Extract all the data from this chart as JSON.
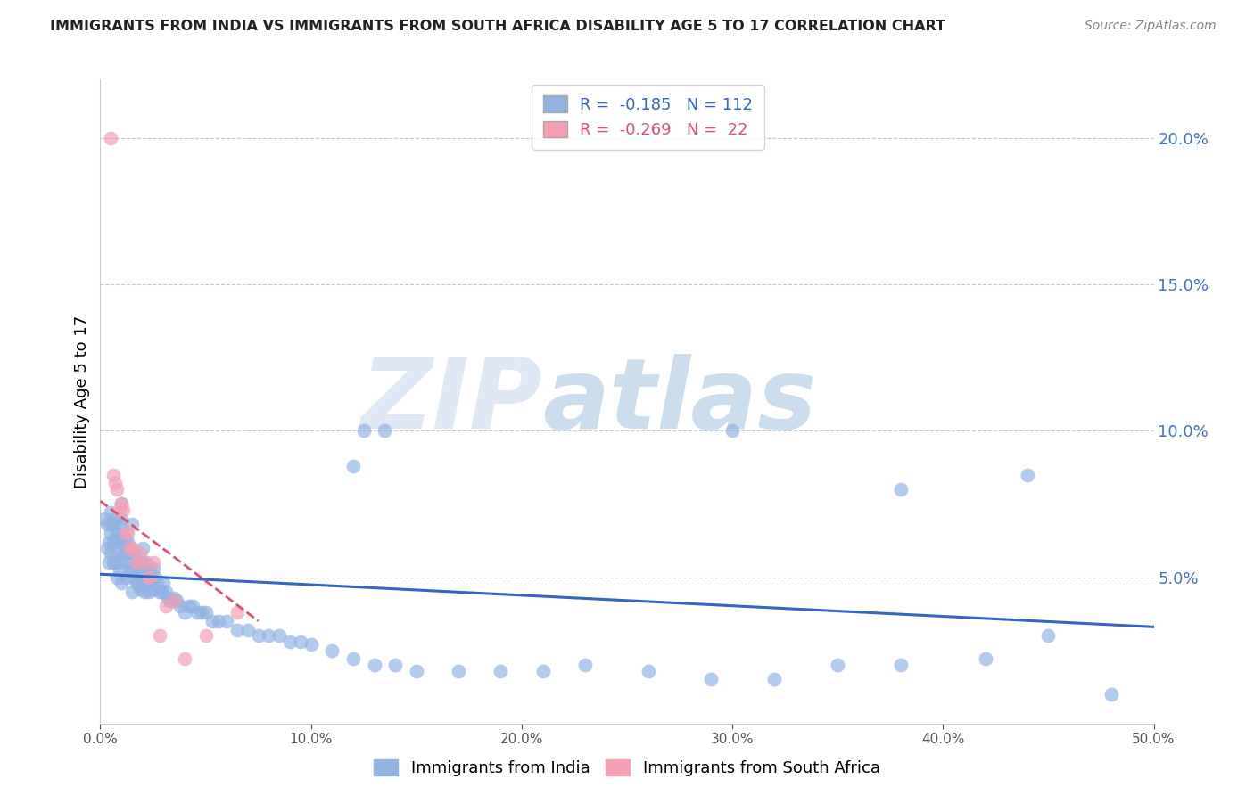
{
  "title": "IMMIGRANTS FROM INDIA VS IMMIGRANTS FROM SOUTH AFRICA DISABILITY AGE 5 TO 17 CORRELATION CHART",
  "source": "Source: ZipAtlas.com",
  "ylabel": "Disability Age 5 to 17",
  "legend_india_label": "Immigrants from India",
  "legend_sa_label": "Immigrants from South Africa",
  "legend_india_R": "R =  -0.185",
  "legend_india_N": "N = 112",
  "legend_sa_R": "R =  -0.269",
  "legend_sa_N": "N =  22",
  "india_color": "#92b4e3",
  "sa_color": "#f4a0b5",
  "india_line_color": "#3465c0",
  "sa_line_color": "#e05070",
  "right_axis_color": "#4472c4",
  "watermark_zip": "ZIP",
  "watermark_atlas": "atlas",
  "xlim": [
    0.0,
    0.5
  ],
  "ylim": [
    0.0,
    0.22
  ],
  "x_ticks": [
    0.0,
    0.1,
    0.2,
    0.3,
    0.4,
    0.5
  ],
  "y_ticks_right": [
    0.05,
    0.1,
    0.15,
    0.2
  ],
  "india_x": [
    0.002,
    0.003,
    0.003,
    0.004,
    0.004,
    0.005,
    0.005,
    0.005,
    0.006,
    0.006,
    0.006,
    0.007,
    0.007,
    0.007,
    0.008,
    0.008,
    0.008,
    0.009,
    0.009,
    0.009,
    0.01,
    0.01,
    0.01,
    0.01,
    0.011,
    0.011,
    0.012,
    0.012,
    0.012,
    0.013,
    0.013,
    0.014,
    0.014,
    0.015,
    0.015,
    0.015,
    0.016,
    0.016,
    0.017,
    0.017,
    0.018,
    0.018,
    0.019,
    0.019,
    0.02,
    0.02,
    0.021,
    0.021,
    0.022,
    0.022,
    0.023,
    0.023,
    0.024,
    0.025,
    0.025,
    0.026,
    0.027,
    0.028,
    0.029,
    0.03,
    0.031,
    0.032,
    0.033,
    0.034,
    0.035,
    0.036,
    0.038,
    0.04,
    0.042,
    0.044,
    0.046,
    0.048,
    0.05,
    0.053,
    0.056,
    0.06,
    0.065,
    0.07,
    0.075,
    0.08,
    0.085,
    0.09,
    0.095,
    0.1,
    0.11,
    0.12,
    0.13,
    0.14,
    0.15,
    0.17,
    0.19,
    0.21,
    0.23,
    0.26,
    0.29,
    0.32,
    0.35,
    0.38,
    0.42,
    0.45,
    0.125,
    0.135,
    0.3,
    0.38,
    0.44,
    0.48,
    0.12,
    0.005,
    0.008,
    0.01,
    0.015,
    0.02
  ],
  "india_y": [
    0.07,
    0.068,
    0.06,
    0.062,
    0.055,
    0.072,
    0.065,
    0.058,
    0.068,
    0.062,
    0.055,
    0.07,
    0.063,
    0.055,
    0.065,
    0.058,
    0.05,
    0.068,
    0.062,
    0.053,
    0.07,
    0.062,
    0.055,
    0.048,
    0.065,
    0.058,
    0.063,
    0.058,
    0.05,
    0.062,
    0.055,
    0.06,
    0.053,
    0.058,
    0.052,
    0.045,
    0.058,
    0.05,
    0.055,
    0.048,
    0.055,
    0.048,
    0.053,
    0.046,
    0.055,
    0.047,
    0.052,
    0.045,
    0.055,
    0.047,
    0.053,
    0.045,
    0.05,
    0.053,
    0.046,
    0.05,
    0.048,
    0.045,
    0.045,
    0.048,
    0.045,
    0.043,
    0.042,
    0.042,
    0.043,
    0.042,
    0.04,
    0.038,
    0.04,
    0.04,
    0.038,
    0.038,
    0.038,
    0.035,
    0.035,
    0.035,
    0.032,
    0.032,
    0.03,
    0.03,
    0.03,
    0.028,
    0.028,
    0.027,
    0.025,
    0.022,
    0.02,
    0.02,
    0.018,
    0.018,
    0.018,
    0.018,
    0.02,
    0.018,
    0.015,
    0.015,
    0.02,
    0.02,
    0.022,
    0.03,
    0.1,
    0.1,
    0.1,
    0.08,
    0.085,
    0.01,
    0.088,
    0.068,
    0.063,
    0.075,
    0.068,
    0.06
  ],
  "sa_x": [
    0.005,
    0.006,
    0.007,
    0.008,
    0.009,
    0.01,
    0.011,
    0.012,
    0.013,
    0.014,
    0.015,
    0.017,
    0.019,
    0.021,
    0.023,
    0.025,
    0.028,
    0.031,
    0.035,
    0.04,
    0.05,
    0.065
  ],
  "sa_y": [
    0.2,
    0.085,
    0.082,
    0.08,
    0.073,
    0.075,
    0.073,
    0.065,
    0.065,
    0.06,
    0.06,
    0.055,
    0.058,
    0.055,
    0.05,
    0.055,
    0.03,
    0.04,
    0.042,
    0.022,
    0.03,
    0.038
  ],
  "india_trend_x": [
    0.0,
    0.5
  ],
  "india_trend_y": [
    0.051,
    0.033
  ],
  "sa_trend_x": [
    0.0,
    0.075
  ],
  "sa_trend_y": [
    0.076,
    0.035
  ]
}
